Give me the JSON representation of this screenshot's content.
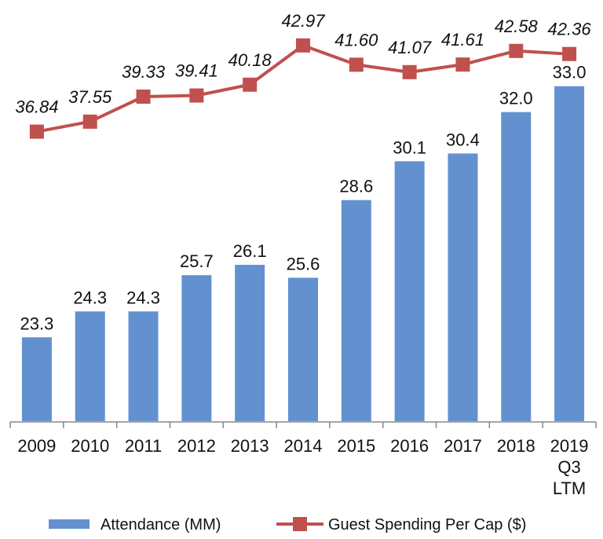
{
  "chart_data": {
    "type": "bar",
    "categories": [
      "2009",
      "2010",
      "2011",
      "2012",
      "2013",
      "2014",
      "2015",
      "2016",
      "2017",
      "2018",
      "2019 Q3 LTM"
    ],
    "ylim": [
      20,
      36.3
    ],
    "y2lim": [
      16.2,
      46.2
    ],
    "legend": "bottom",
    "series": [
      {
        "name": "Attendance (MM)",
        "color": "#6391d0",
        "type": "bar",
        "values": [
          23.3,
          24.3,
          24.3,
          25.7,
          26.1,
          25.6,
          28.6,
          30.1,
          30.4,
          32.0,
          33.0
        ],
        "value_labels": [
          "23.3",
          "24.3",
          "24.3",
          "25.7",
          "26.1",
          "25.6",
          "28.6",
          "30.1",
          "30.4",
          "32.0",
          "33.0"
        ]
      },
      {
        "name": "Guest Spending Per Cap ($)",
        "color": "#c0504d",
        "type": "line",
        "axis": "y2",
        "values": [
          36.84,
          37.55,
          39.33,
          39.41,
          40.18,
          42.97,
          41.6,
          41.07,
          41.61,
          42.58,
          42.36
        ],
        "value_labels": [
          "36.84",
          "37.55",
          "39.33",
          "39.41",
          "40.18",
          "42.97",
          "41.60",
          "41.07",
          "41.61",
          "42.58",
          "42.36"
        ]
      }
    ]
  }
}
